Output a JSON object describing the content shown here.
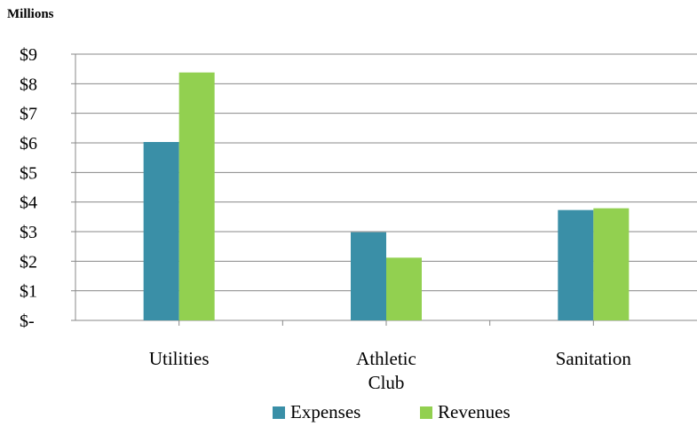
{
  "chart_data": {
    "type": "bar",
    "units_label": "Millions",
    "categories": [
      [
        "Utilities"
      ],
      [
        "Athletic",
        "Club"
      ],
      [
        "Sanitation"
      ]
    ],
    "series": [
      {
        "name": "Expenses",
        "values": [
          6.03,
          2.98,
          3.73
        ],
        "color": "#3a8fa7"
      },
      {
        "name": "Revenues",
        "values": [
          8.38,
          2.12,
          3.79
        ],
        "color": "#92d050"
      }
    ],
    "y_ticks": [
      "$-",
      "$1",
      "$2",
      "$3",
      "$4",
      "$5",
      "$6",
      "$7",
      "$8",
      "$9"
    ],
    "ylim": [
      0,
      9
    ],
    "grid": true,
    "grid_color": "#888888",
    "legend_position": "bottom"
  }
}
